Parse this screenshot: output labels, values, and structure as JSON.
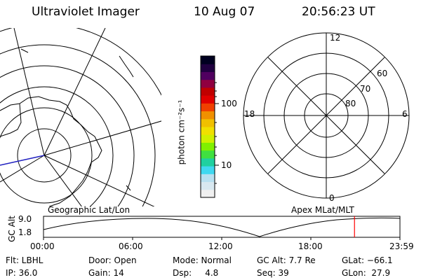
{
  "header": {
    "title": "Ultraviolet Imager",
    "date": "10 Aug 07",
    "time": "20:56:23 UT"
  },
  "colorbar": {
    "unit_label": "photon cm⁻²s⁻¹",
    "tick_100": "100",
    "tick_10": "10",
    "colors": [
      "#f0f0f0",
      "#d8e8f0",
      "#b8e0f0",
      "#40d8f0",
      "#20d0a0",
      "#40e040",
      "#80f000",
      "#d0f000",
      "#f0e000",
      "#f0c000",
      "#f09000",
      "#f04000",
      "#e00000",
      "#c00000",
      "#900040",
      "#500060",
      "#200040",
      "#000020"
    ]
  },
  "polar": {
    "labels": {
      "top": "12",
      "bottom": "0",
      "left": "18",
      "right": "6"
    },
    "rings": [
      "60",
      "70",
      "80"
    ]
  },
  "timeline": {
    "left_label": "Geographic Lat/Lon",
    "right_label": "Apex MLat/MLT",
    "axis_title": "GC Alt",
    "y_top": "9.0",
    "y_bottom": "1.8",
    "ticks": [
      "00:00",
      "06:00",
      "12:00",
      "18:00",
      "23:59"
    ],
    "marker_hour": 20.94,
    "marker_color": "#ff0000"
  },
  "info": {
    "filter": "Flt: LBHL",
    "ip": "IP: 36.0",
    "door": "Door: Open",
    "gain": "Gain: 14",
    "mode": "Mode: Normal",
    "dsp": "Dsp:     4.8",
    "gcalt": "GC Alt: 7.7 Re",
    "seq": "Seq: 39",
    "glat": "GLat: −66.1",
    "glon": "GLon:  27.9"
  }
}
